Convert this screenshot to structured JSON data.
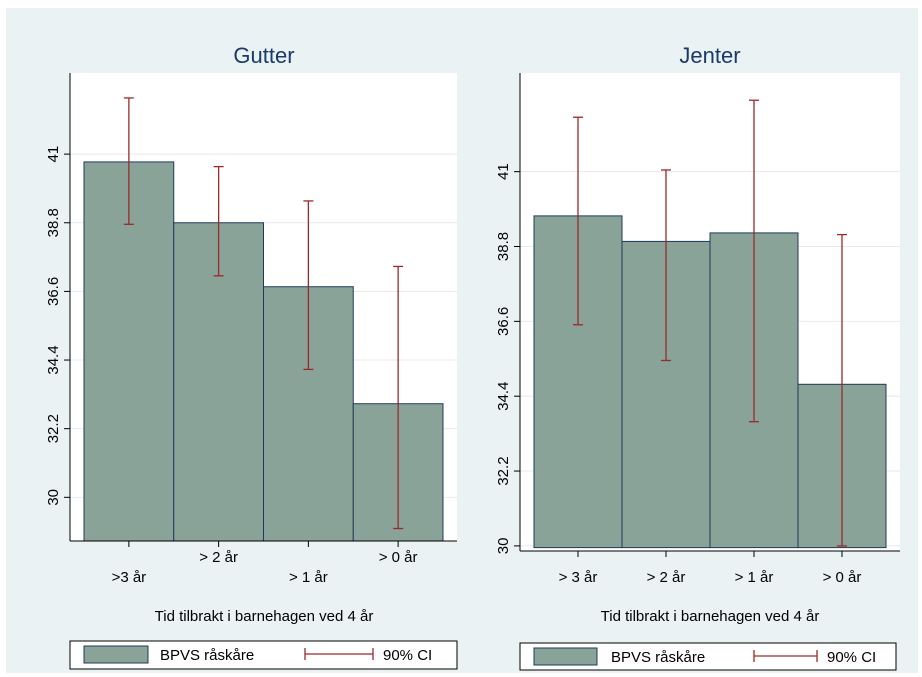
{
  "colors": {
    "background": "#eaf2f3",
    "plot_bg": "#ffffff",
    "bar_fill": "#8aa398",
    "bar_stroke": "#1f3b58",
    "ci_color": "#9a2a2a",
    "title_color": "#1a3a6b",
    "text_color": "#000000"
  },
  "chart_data": [
    {
      "type": "bar",
      "title": "Gutter",
      "xlabel": "Tid tilbrakt i barnehagen ved 4 år",
      "categories": [
        ">3 år",
        "> 2 år",
        "> 1 år",
        "> 0 år"
      ],
      "series": [
        {
          "name": "BPVS råskåre",
          "values": [
            40.75,
            38.8,
            36.75,
            33.0
          ],
          "ci_low": [
            38.75,
            37.1,
            34.1,
            29.0
          ],
          "ci_high": [
            42.8,
            40.6,
            39.5,
            37.4
          ]
        }
      ],
      "ylim": [
        28.6,
        43.6
      ],
      "base": 28.6,
      "yticks": [
        30,
        32.2,
        34.4,
        36.6,
        38.8,
        41
      ],
      "ytick_labels": [
        "30",
        "32.2",
        "34.4",
        "36.6",
        "38.8",
        "41"
      ],
      "legend": {
        "position": "bottom",
        "bar_label": "BPVS råskåre",
        "ci_label": "90% CI"
      }
    },
    {
      "type": "bar",
      "title": "Jenter",
      "xlabel": "Tid tilbrakt i barnehagen ved 4 år",
      "categories": [
        "> 3 år",
        "> 2 år",
        "> 1 år",
        "> 0 år"
      ],
      "series": [
        {
          "name": "BPVS råskåre",
          "values": [
            39.7,
            38.95,
            39.2,
            34.75
          ],
          "ci_low": [
            36.5,
            35.45,
            33.65,
            30.0
          ],
          "ci_high": [
            42.6,
            41.05,
            43.1,
            39.15
          ]
        }
      ],
      "ylim": [
        29.85,
        43.9
      ],
      "base": 29.95,
      "yticks": [
        30,
        32.2,
        34.4,
        36.6,
        38.8,
        41
      ],
      "ytick_labels": [
        "30",
        "32.2",
        "34.4",
        "36.6",
        "38.8",
        "41"
      ],
      "legend": {
        "position": "bottom",
        "bar_label": "BPVS råskåre",
        "ci_label": "90% CI"
      }
    }
  ]
}
